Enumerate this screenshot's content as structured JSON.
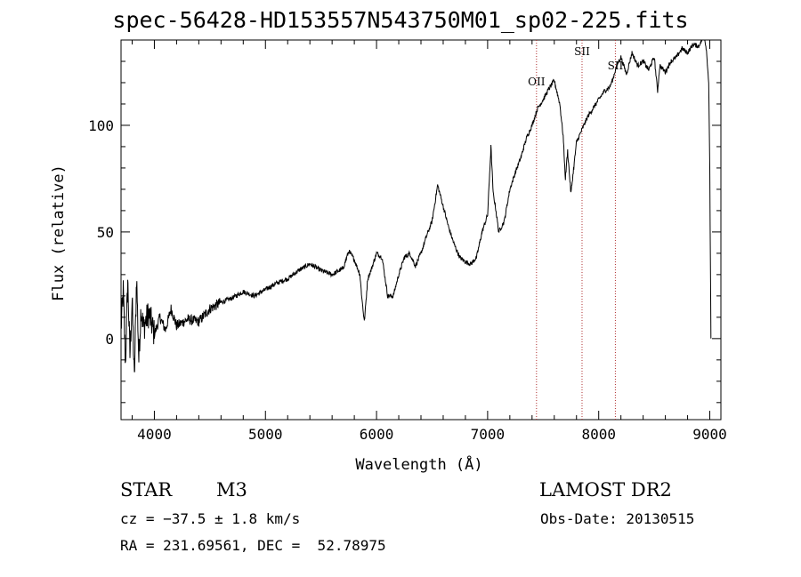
{
  "title": "spec-56428-HD153557N543750M01_sp02-225.fits",
  "object": {
    "class": "STAR",
    "subclass": "M3"
  },
  "survey": "LAMOST DR2",
  "cz_text": "cz = −37.5 ± 1.8 km/s",
  "coords_text": "RA = 231.69561, DEC =  52.78975",
  "obs_date_text": "Obs-Date: 20130515",
  "chart_data": {
    "type": "line",
    "title": "spec-56428-HD153557N543750M01_sp02-225.fits",
    "xlabel": "Wavelength (Å)",
    "ylabel": "Flux (relative)",
    "xlim": [
      3700,
      9100
    ],
    "ylim": [
      -38,
      140
    ],
    "xticks": [
      4000,
      5000,
      6000,
      7000,
      8000,
      9000
    ],
    "yticks": [
      0,
      50,
      100
    ],
    "grid": false,
    "series": [
      {
        "color": "#000000",
        "x": [
          3700,
          3720,
          3740,
          3760,
          3780,
          3800,
          3820,
          3840,
          3860,
          3880,
          3900,
          3950,
          4000,
          4050,
          4100,
          4150,
          4200,
          4300,
          4400,
          4500,
          4600,
          4700,
          4800,
          4900,
          5000,
          5100,
          5200,
          5300,
          5400,
          5500,
          5600,
          5700,
          5750,
          5800,
          5850,
          5870,
          5890,
          5900,
          5920,
          5950,
          6000,
          6050,
          6100,
          6150,
          6200,
          6250,
          6300,
          6350,
          6400,
          6450,
          6500,
          6550,
          6600,
          6650,
          6700,
          6750,
          6800,
          6850,
          6900,
          6950,
          7000,
          7030,
          7050,
          7070,
          7100,
          7150,
          7200,
          7250,
          7300,
          7350,
          7400,
          7450,
          7500,
          7550,
          7600,
          7650,
          7680,
          7700,
          7720,
          7750,
          7800,
          7850,
          7900,
          7950,
          8000,
          8050,
          8100,
          8130,
          8150,
          8170,
          8200,
          8250,
          8300,
          8350,
          8400,
          8450,
          8500,
          8530,
          8550,
          8600,
          8650,
          8700,
          8750,
          8800,
          8850,
          8900,
          8930,
          8950,
          8970,
          8990,
          9000,
          9010
        ],
        "values": [
          5,
          22,
          -12,
          28,
          -8,
          18,
          -20,
          30,
          -10,
          15,
          5,
          12,
          2,
          10,
          4,
          14,
          6,
          9,
          8,
          14,
          17,
          19,
          22,
          20,
          23,
          26,
          28,
          32,
          35,
          32,
          30,
          33,
          41,
          37,
          30,
          18,
          8,
          14,
          28,
          32,
          40,
          38,
          20,
          20,
          30,
          38,
          40,
          34,
          40,
          48,
          55,
          72,
          62,
          52,
          44,
          38,
          36,
          35,
          38,
          50,
          58,
          90,
          68,
          62,
          50,
          55,
          70,
          78,
          85,
          94,
          100,
          108,
          112,
          117,
          121,
          110,
          95,
          75,
          88,
          68,
          92,
          98,
          104,
          108,
          112,
          116,
          118,
          122,
          126,
          129,
          132,
          124,
          134,
          128,
          130,
          126,
          132,
          116,
          128,
          125,
          130,
          132,
          136,
          134,
          138,
          137,
          140,
          142,
          135,
          120,
          80,
          0
        ],
        "line_positions": [
          7440,
          7850,
          8150
        ]
      }
    ],
    "annotations": [
      {
        "label": "OII",
        "x": 7440
      },
      {
        "label": "SII",
        "x": 7850
      },
      {
        "label": "SII",
        "x": 8150
      }
    ]
  }
}
